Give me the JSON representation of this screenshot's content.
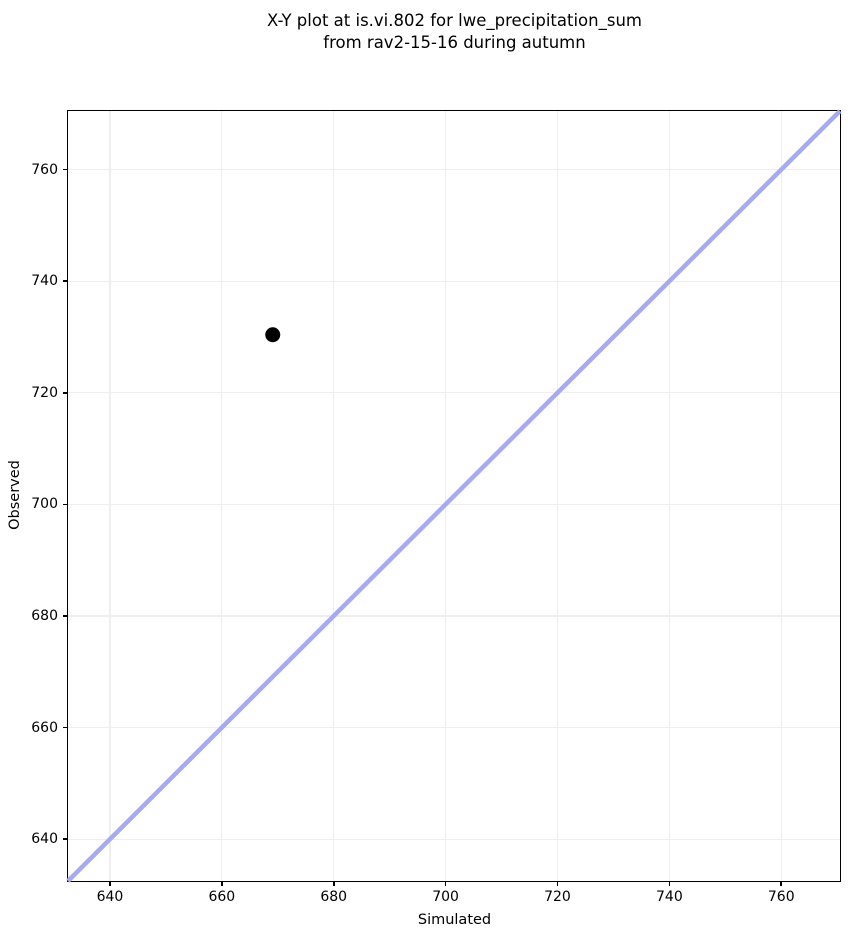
{
  "title": {
    "line1": "X-Y plot at is.vi.802 for lwe_precipitation_sum",
    "line2": "from rav2-15-16 during autumn"
  },
  "chart_data": {
    "type": "scatter",
    "title": "X-Y plot at is.vi.802 for lwe_precipitation_sum from rav2-15-16 during autumn",
    "xlabel": "Simulated",
    "ylabel": "Observed",
    "xlim": [
      632.5,
      770.5
    ],
    "ylim": [
      632.5,
      770.5
    ],
    "xticks": [
      640,
      660,
      680,
      700,
      720,
      740,
      760
    ],
    "yticks": [
      640,
      660,
      680,
      700,
      720,
      740,
      760
    ],
    "grid": true,
    "legend": false,
    "series": [
      {
        "name": "identity-line",
        "kind": "line",
        "color": "#a8aaf0",
        "width": 4.5,
        "points": [
          [
            632.5,
            632.5
          ],
          [
            770.5,
            770.5
          ]
        ]
      },
      {
        "name": "observations",
        "kind": "scatter",
        "color": "#000000",
        "marker_radius": 7.5,
        "points": [
          [
            669.1,
            730.4
          ]
        ]
      }
    ]
  },
  "colors": {
    "background": "#ffffff",
    "frame": "#000000",
    "grid": "#efefef",
    "identity_line": "#a8aaf0",
    "point": "#000000",
    "text": "#000000"
  }
}
